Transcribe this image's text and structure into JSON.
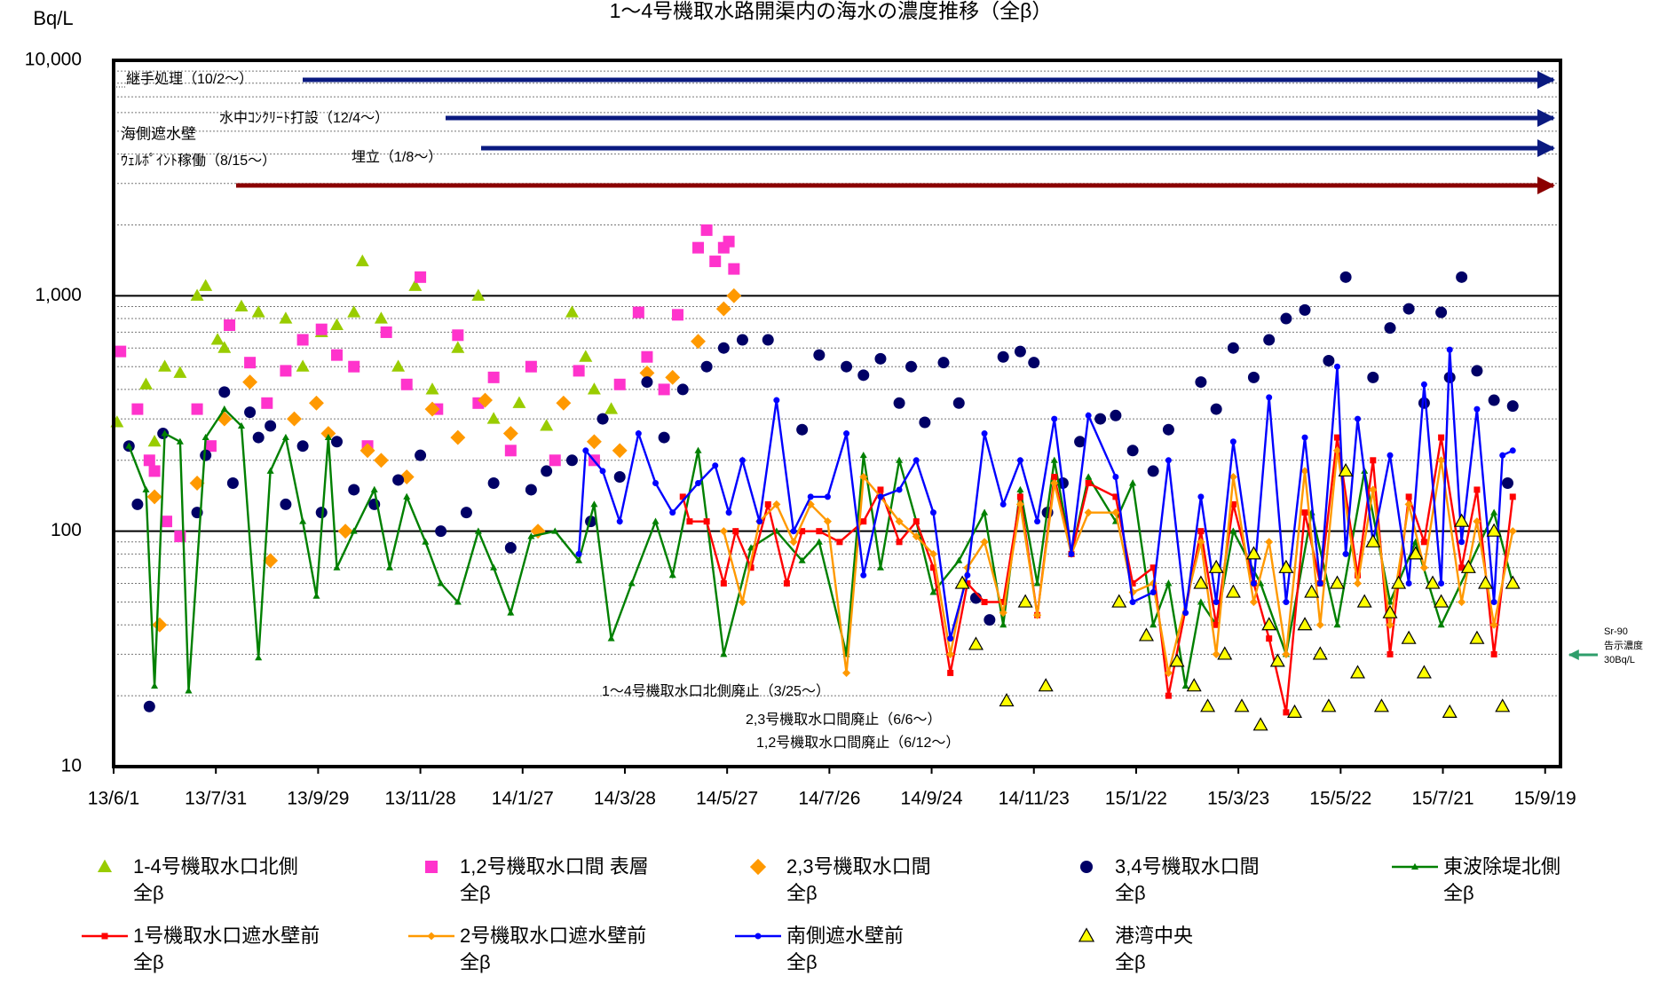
{
  "chart_data": {
    "type": "scatter",
    "title": "1～4号機取水路開渠内の海水の濃度推移（全β）",
    "y_label": "Bq/L",
    "log_y": true,
    "xlim": [
      "13/6/1",
      "15/9/28"
    ],
    "xticks": [
      "13/6/1",
      "13/7/31",
      "13/9/29",
      "13/11/28",
      "14/1/27",
      "14/3/28",
      "14/5/27",
      "14/7/26",
      "14/9/24",
      "14/11/23",
      "15/1/22",
      "15/3/23",
      "15/5/22",
      "15/7/21",
      "15/9/19"
    ],
    "ylim": [
      10,
      10000
    ],
    "yticks": [
      10,
      100,
      {
        "value": 1000,
        "label": "1,000"
      },
      {
        "value": 10000,
        "label": "10,000"
      }
    ],
    "yminor": [
      20,
      30,
      40,
      50,
      60,
      70,
      80,
      90,
      200,
      300,
      400,
      500,
      600,
      700,
      800,
      900,
      2000,
      3000,
      4000,
      5000,
      6000,
      7000,
      8000,
      9000
    ],
    "grid": true,
    "annotations": [
      "継手処理（10/2～）",
      "海側遮水壁",
      "水中ｺﾝｸﾘｰﾄ打設（12/4～）",
      "ｳｪﾙﾎﾟｲﾝﾄ稼働（8/15～）",
      "埋立（1/8～）",
      "1～4号機取水口北側廃止（3/25～）",
      "2,3号機取水口間廃止（6/6～）",
      "1,2号機取水口間廃止（6/12～）",
      "Sr-90",
      "告示濃度",
      "30Bq/L"
    ],
    "series": [
      {
        "name": "1-4号機取水口北側\n全β",
        "color": "#99cc00",
        "marker": "triangle",
        "line": false,
        "x": [
          "13/6/3",
          "13/6/20",
          "13/6/25",
          "13/7/1",
          "13/7/10",
          "13/7/20",
          "13/7/25",
          "13/8/1",
          "13/8/5",
          "13/8/15",
          "13/8/25",
          "13/9/10",
          "13/9/20",
          "13/10/1",
          "13/10/10",
          "13/10/20",
          "13/10/25",
          "13/11/5",
          "13/11/15",
          "13/11/25",
          "13/12/5",
          "13/12/20",
          "14/1/1",
          "14/1/10",
          "14/1/25",
          "14/2/10",
          "14/2/25",
          "14/3/5",
          "14/3/10",
          "14/3/20"
        ],
        "values": [
          290,
          420,
          240,
          500,
          470,
          1000,
          1100,
          650,
          600,
          900,
          850,
          800,
          500,
          700,
          750,
          850,
          1400,
          800,
          500,
          1100,
          400,
          600,
          1000,
          300,
          350,
          280,
          850,
          550,
          400,
          330
        ]
      },
      {
        "name": "1,2号機取水口間 表層\n全β",
        "color": "#ff33cc",
        "marker": "square",
        "line": false,
        "x": [
          "13/6/5",
          "13/6/15",
          "13/6/22",
          "13/6/25",
          "13/7/2",
          "13/7/10",
          "13/7/20",
          "13/7/28",
          "13/8/8",
          "13/8/20",
          "13/8/30",
          "13/9/10",
          "13/9/20",
          "13/10/1",
          "13/10/10",
          "13/10/20",
          "13/10/28",
          "13/11/8",
          "13/11/20",
          "13/11/28",
          "13/12/8",
          "13/12/20",
          "14/1/1",
          "14/1/10",
          "14/1/20",
          "14/2/1",
          "14/2/15",
          "14/3/1",
          "14/3/10",
          "14/3/25",
          "14/4/5",
          "14/4/10",
          "14/4/20",
          "14/4/28",
          "14/5/10",
          "14/5/15",
          "14/5/20",
          "14/5/25",
          "14/5/28",
          "14/5/31"
        ],
        "values": [
          580,
          330,
          200,
          180,
          110,
          95,
          330,
          230,
          750,
          520,
          350,
          480,
          650,
          720,
          560,
          500,
          230,
          700,
          420,
          1200,
          330,
          680,
          350,
          450,
          220,
          500,
          200,
          480,
          200,
          420,
          850,
          550,
          400,
          830,
          1600,
          1900,
          1400,
          1600,
          1700,
          1300
        ]
      },
      {
        "name": "2,3号機取水口間\n全β",
        "color": "#ff9900",
        "marker": "diamond",
        "line": false,
        "x": [
          "13/6/25",
          "13/6/28",
          "13/7/20",
          "13/8/5",
          "13/8/20",
          "13/9/1",
          "13/9/15",
          "13/9/28",
          "13/10/5",
          "13/10/15",
          "13/10/28",
          "13/11/5",
          "13/11/20",
          "13/12/5",
          "13/12/20",
          "14/1/5",
          "14/1/20",
          "14/2/5",
          "14/2/20",
          "14/3/10",
          "14/3/25",
          "14/4/10",
          "14/4/25",
          "14/5/10",
          "14/5/25",
          "14/5/31"
        ],
        "values": [
          140,
          40,
          160,
          300,
          430,
          75,
          300,
          350,
          260,
          100,
          220,
          200,
          170,
          330,
          250,
          360,
          260,
          100,
          350,
          240,
          220,
          470,
          450,
          640,
          880,
          1000
        ]
      },
      {
        "name": "3,4号機取水口間\n全β",
        "color": "#000066",
        "marker": "circle",
        "line": false,
        "x": [
          "13/6/10",
          "13/6/15",
          "13/6/22",
          "13/6/30",
          "13/7/20",
          "13/7/25",
          "13/8/5",
          "13/8/10",
          "13/8/20",
          "13/8/25",
          "13/9/1",
          "13/9/10",
          "13/9/20",
          "13/10/1",
          "13/10/10",
          "13/10/20",
          "13/11/1",
          "13/11/15",
          "13/11/28",
          "13/12/10",
          "13/12/25",
          "14/1/10",
          "14/1/20",
          "14/2/1",
          "14/2/10",
          "14/2/25",
          "14/3/8",
          "14/3/15",
          "14/3/25",
          "14/4/10",
          "14/4/20",
          "14/5/1",
          "14/5/15",
          "14/5/25",
          "14/6/5",
          "14/6/20",
          "14/7/10",
          "14/7/20",
          "14/8/5",
          "14/8/15",
          "14/8/25",
          "14/9/5",
          "14/9/12",
          "14/9/20",
          "14/10/1",
          "14/10/10",
          "14/10/20",
          "14/10/28",
          "14/11/5",
          "14/11/15",
          "14/11/23",
          "14/12/1",
          "14/12/10",
          "14/12/20",
          "15/1/1",
          "15/1/10",
          "15/1/20",
          "15/2/1",
          "15/2/10",
          "15/3/1",
          "15/3/10",
          "15/3/20",
          "15/4/1",
          "15/4/10",
          "15/4/20",
          "15/5/1",
          "15/5/15",
          "15/5/25",
          "15/6/10",
          "15/6/20",
          "15/7/1",
          "15/7/10",
          "15/7/20",
          "15/7/25",
          "15/8/1",
          "15/8/10",
          "15/8/20",
          "15/8/28",
          "15/8/31"
        ],
        "values": [
          230,
          130,
          18,
          260,
          120,
          210,
          390,
          160,
          320,
          250,
          280,
          130,
          230,
          120,
          240,
          150,
          130,
          165,
          210,
          100,
          120,
          160,
          85,
          150,
          180,
          200,
          110,
          300,
          170,
          430,
          250,
          400,
          500,
          600,
          650,
          650,
          270,
          560,
          500,
          460,
          540,
          350,
          500,
          290,
          520,
          350,
          52,
          42,
          550,
          580,
          520,
          120,
          160,
          240,
          300,
          310,
          220,
          180,
          270,
          430,
          330,
          600,
          450,
          650,
          800,
          870,
          530,
          1200,
          450,
          730,
          880,
          350,
          850,
          450,
          1200,
          480,
          360,
          160,
          340
        ]
      },
      {
        "name": "東波除堤北側\n全β",
        "color": "#008000",
        "marker": "triangle",
        "line": true,
        "x": [
          "13/6/10",
          "13/6/20",
          "13/6/25",
          "13/7/1",
          "13/7/10",
          "13/7/15",
          "13/7/25",
          "13/8/5",
          "13/8/15",
          "13/8/25",
          "13/9/1",
          "13/9/10",
          "13/9/20",
          "13/9/28",
          "13/10/5",
          "13/10/10",
          "13/10/20",
          "13/11/1",
          "13/11/10",
          "13/11/20",
          "13/12/1",
          "13/12/10",
          "13/12/20",
          "14/1/1",
          "14/1/10",
          "14/1/20",
          "14/2/1",
          "14/2/15",
          "14/3/1",
          "14/3/10",
          "14/3/20",
          "14/4/1",
          "14/4/15",
          "14/4/25",
          "14/5/10",
          "14/5/25",
          "14/6/10",
          "14/6/25",
          "14/7/10",
          "14/7/20",
          "14/8/5",
          "14/8/15",
          "14/8/25",
          "14/9/5",
          "14/9/15",
          "14/9/25",
          "14/10/10",
          "14/10/25",
          "14/11/5",
          "14/11/15",
          "14/11/25",
          "14/12/5",
          "14/12/15",
          "14/12/25",
          "15/1/10",
          "15/1/20",
          "15/2/1",
          "15/2/10",
          "15/2/20",
          "15/3/1",
          "15/3/10",
          "15/3/20",
          "15/4/5",
          "15/4/20",
          "15/5/5",
          "15/5/20",
          "15/6/5",
          "15/6/20",
          "15/7/5",
          "15/7/20",
          "15/8/5",
          "15/8/20",
          "15/8/31"
        ],
        "values": [
          230,
          150,
          22,
          260,
          240,
          21,
          250,
          330,
          280,
          29,
          180,
          250,
          110,
          53,
          250,
          70,
          100,
          150,
          70,
          140,
          90,
          60,
          50,
          100,
          70,
          45,
          95,
          100,
          75,
          130,
          35,
          60,
          110,
          65,
          220,
          30,
          85,
          100,
          75,
          90,
          30,
          210,
          70,
          200,
          110,
          55,
          75,
          120,
          40,
          150,
          60,
          200,
          80,
          170,
          110,
          160,
          40,
          60,
          22,
          50,
          40,
          100,
          60,
          30,
          120,
          40,
          180,
          50,
          90,
          40,
          70,
          120,
          60
        ]
      },
      {
        "name": "1号機取水口遮水壁前\n全β",
        "color": "#ff0000",
        "marker": "square",
        "line": true,
        "x": [
          "14/5/1",
          "14/5/5",
          "14/5/15",
          "14/5/25",
          "14/6/1",
          "14/6/10",
          "14/6/20",
          "14/7/1",
          "14/7/10",
          "14/7/20",
          "14/8/1",
          "14/8/15",
          "14/8/25",
          "14/9/5",
          "14/9/15",
          "14/9/25",
          "14/10/5",
          "14/10/15",
          "14/10/25",
          "14/11/5",
          "14/11/15",
          "14/11/25",
          "14/12/5",
          "14/12/15",
          "14/12/25",
          "15/1/10",
          "15/1/20",
          "15/2/1",
          "15/2/10",
          "15/3/1",
          "15/3/10",
          "15/3/20",
          "15/4/1",
          "15/4/10",
          "15/4/20",
          "15/5/1",
          "15/5/10",
          "15/5/20",
          "15/6/1",
          "15/6/10",
          "15/6/20",
          "15/7/1",
          "15/7/10",
          "15/7/20",
          "15/8/1",
          "15/8/10",
          "15/8/20",
          "15/8/31"
        ],
        "values": [
          140,
          110,
          110,
          60,
          100,
          70,
          130,
          60,
          100,
          100,
          90,
          110,
          150,
          90,
          110,
          70,
          25,
          60,
          50,
          50,
          140,
          44,
          170,
          80,
          160,
          140,
          60,
          70,
          20,
          100,
          40,
          130,
          60,
          35,
          17,
          120,
          60,
          250,
          65,
          200,
          30,
          140,
          90,
          250,
          70,
          150,
          30,
          140
        ]
      },
      {
        "name": "2号機取水口遮水壁前\n全β",
        "color": "#ff9900",
        "marker": "diamond",
        "line": true,
        "x": [
          "14/5/25",
          "14/6/5",
          "14/6/15",
          "14/6/25",
          "14/7/5",
          "14/7/15",
          "14/7/25",
          "14/8/5",
          "14/8/15",
          "14/8/25",
          "14/9/5",
          "14/9/15",
          "14/9/25",
          "14/10/5",
          "14/10/15",
          "14/10/25",
          "14/11/5",
          "14/11/15",
          "14/11/25",
          "14/12/5",
          "14/12/15",
          "14/12/25",
          "15/1/10",
          "15/1/20",
          "15/2/1",
          "15/2/10",
          "15/3/1",
          "15/3/10",
          "15/3/20",
          "15/4/1",
          "15/4/10",
          "15/4/20",
          "15/5/1",
          "15/5/10",
          "15/5/20",
          "15/6/1",
          "15/6/10",
          "15/6/20",
          "15/7/1",
          "15/7/10",
          "15/7/20",
          "15/8/1",
          "15/8/10",
          "15/8/20",
          "15/8/31"
        ],
        "values": [
          100,
          50,
          110,
          130,
          90,
          130,
          110,
          25,
          170,
          140,
          110,
          95,
          80,
          30,
          70,
          90,
          45,
          130,
          44,
          160,
          80,
          120,
          120,
          55,
          60,
          25,
          90,
          30,
          170,
          50,
          90,
          30,
          180,
          40,
          220,
          60,
          150,
          40,
          130,
          70,
          200,
          50,
          110,
          40,
          100
        ]
      },
      {
        "name": "南側遮水壁前\n全β",
        "color": "#0000ff",
        "marker": "circle",
        "line": true,
        "x": [
          "14/3/1",
          "14/3/5",
          "14/3/15",
          "14/3/25",
          "14/4/5",
          "14/4/15",
          "14/4/25",
          "14/5/10",
          "14/5/20",
          "14/5/28",
          "14/6/5",
          "14/6/15",
          "14/6/25",
          "14/7/5",
          "14/7/15",
          "14/7/25",
          "14/8/5",
          "14/8/15",
          "14/8/25",
          "14/9/5",
          "14/9/15",
          "14/9/25",
          "14/10/5",
          "14/10/15",
          "14/10/25",
          "14/11/5",
          "14/11/15",
          "14/11/25",
          "14/12/5",
          "14/12/15",
          "14/12/25",
          "15/1/10",
          "15/1/20",
          "15/2/1",
          "15/2/10",
          "15/2/20",
          "15/3/1",
          "15/3/10",
          "15/3/20",
          "15/4/1",
          "15/4/10",
          "15/4/20",
          "15/5/1",
          "15/5/10",
          "15/5/20",
          "15/5/25",
          "15/6/1",
          "15/6/10",
          "15/6/20",
          "15/7/1",
          "15/7/10",
          "15/7/20",
          "15/7/25",
          "15/8/1",
          "15/8/10",
          "15/8/20",
          "15/8/25",
          "15/8/31"
        ],
        "values": [
          80,
          220,
          180,
          110,
          260,
          160,
          120,
          160,
          190,
          120,
          200,
          110,
          360,
          100,
          140,
          140,
          260,
          65,
          140,
          150,
          200,
          120,
          35,
          65,
          260,
          130,
          200,
          110,
          300,
          80,
          310,
          170,
          50,
          55,
          200,
          45,
          140,
          50,
          240,
          60,
          370,
          50,
          250,
          60,
          500,
          80,
          300,
          90,
          210,
          60,
          420,
          60,
          590,
          90,
          330,
          50,
          210,
          220
        ]
      },
      {
        "name": "港湾中央\n全β",
        "color": "#ffff00",
        "edgecolor": "#000000",
        "marker": "triangle",
        "line": false,
        "x": [
          "14/10/12",
          "14/10/20",
          "14/11/7",
          "14/11/18",
          "14/11/30",
          "15/1/12",
          "15/1/28",
          "15/2/15",
          "15/2/25",
          "15/3/1",
          "15/3/5",
          "15/3/10",
          "15/3/15",
          "15/3/20",
          "15/3/25",
          "15/4/1",
          "15/4/5",
          "15/4/10",
          "15/4/15",
          "15/4/20",
          "15/4/25",
          "15/5/1",
          "15/5/5",
          "15/5/10",
          "15/5/15",
          "15/5/20",
          "15/5/25",
          "15/6/1",
          "15/6/5",
          "15/6/10",
          "15/6/15",
          "15/6/20",
          "15/6/25",
          "15/7/1",
          "15/7/5",
          "15/7/10",
          "15/7/15",
          "15/7/20",
          "15/7/25",
          "15/8/1",
          "15/8/5",
          "15/8/10",
          "15/8/15",
          "15/8/20",
          "15/8/25",
          "15/8/31"
        ],
        "values": [
          60,
          33,
          19,
          50,
          22,
          50,
          36,
          28,
          22,
          60,
          18,
          70,
          30,
          55,
          18,
          80,
          15,
          40,
          28,
          70,
          17,
          40,
          55,
          30,
          18,
          60,
          180,
          25,
          50,
          90,
          18,
          45,
          60,
          35,
          80,
          25,
          60,
          50,
          17,
          110,
          70,
          35,
          60,
          100,
          18,
          60
        ]
      }
    ]
  }
}
